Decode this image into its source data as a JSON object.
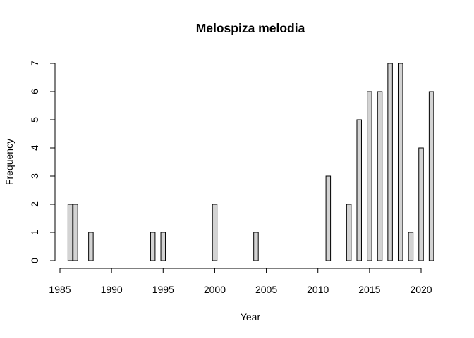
{
  "chart_data": {
    "type": "bar",
    "title": "Melospiza melodia",
    "xlabel": "Year",
    "ylabel": "Frequency",
    "xlim": [
      1985,
      2021
    ],
    "ylim": [
      0,
      7
    ],
    "x_ticks": [
      1985,
      1990,
      1995,
      2000,
      2005,
      2010,
      2015,
      2020
    ],
    "y_ticks": [
      0,
      1,
      2,
      3,
      4,
      5,
      6,
      7
    ],
    "grid": false,
    "legend": "none",
    "bar_fill": "#d3d3d3",
    "bar_stroke": "#000000",
    "x": [
      1986,
      1986.5,
      1988,
      1990,
      1991,
      1992,
      1993,
      1994,
      1995,
      1996,
      1997,
      1998,
      1999,
      2000,
      2001,
      2002,
      2003,
      2004,
      2005,
      2006,
      2007,
      2008,
      2009,
      2010,
      2011,
      2012,
      2013,
      2014,
      2015,
      2016,
      2017,
      2018,
      2019,
      2020,
      2021
    ],
    "values": [
      2,
      2,
      1,
      0,
      0,
      0,
      0,
      1,
      1,
      0,
      0,
      0,
      0,
      2,
      0,
      0,
      0,
      1,
      0,
      0,
      0,
      0,
      0,
      0,
      3,
      0,
      2,
      5,
      6,
      6,
      7,
      7,
      1,
      4,
      6
    ]
  }
}
